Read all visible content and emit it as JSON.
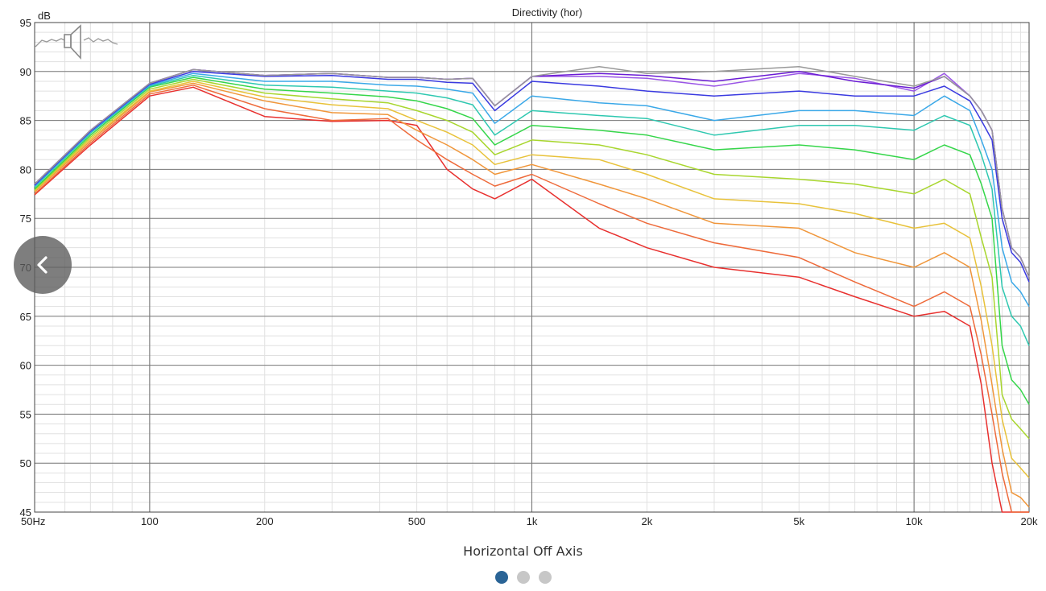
{
  "chart_data": {
    "type": "line",
    "title": "Directivity (hor)",
    "ylabel": "dB",
    "xscale": "log",
    "xlim": [
      50,
      20000
    ],
    "ylim": [
      45,
      95
    ],
    "xticks": [
      {
        "v": 50,
        "label": "50Hz"
      },
      {
        "v": 100,
        "label": "100"
      },
      {
        "v": 200,
        "label": "200"
      },
      {
        "v": 500,
        "label": "500"
      },
      {
        "v": 1000,
        "label": "1k"
      },
      {
        "v": 2000,
        "label": "2k"
      },
      {
        "v": 5000,
        "label": "5k"
      },
      {
        "v": 10000,
        "label": "10k"
      },
      {
        "v": 20000,
        "label": "20k"
      }
    ],
    "yticks": [
      {
        "v": 45,
        "label": "45"
      },
      {
        "v": 50,
        "label": "50"
      },
      {
        "v": 55,
        "label": "55"
      },
      {
        "v": 60,
        "label": "60"
      },
      {
        "v": 65,
        "label": "65"
      },
      {
        "v": 70,
        "label": "70"
      },
      {
        "v": 75,
        "label": "75"
      },
      {
        "v": 80,
        "label": "80"
      },
      {
        "v": 85,
        "label": "85"
      },
      {
        "v": 90,
        "label": "90"
      },
      {
        "v": 95,
        "label": "95"
      }
    ],
    "grid": true,
    "x": [
      50,
      70,
      100,
      130,
      200,
      300,
      420,
      500,
      600,
      700,
      800,
      1000,
      1500,
      2000,
      3000,
      5000,
      7000,
      10000,
      12000,
      14000,
      15000,
      16000,
      17000,
      18000,
      19000,
      20000
    ],
    "series": [
      {
        "color": "#999999",
        "values": [
          78.5,
          84.0,
          88.8,
          90.2,
          89.6,
          89.8,
          89.4,
          89.4,
          89.2,
          89.3,
          86.5,
          89.5,
          90.5,
          89.8,
          90.0,
          90.5,
          89.5,
          88.5,
          89.5,
          87.5,
          86.0,
          84.0,
          76.0,
          72.0,
          71.0,
          69.0
        ]
      },
      {
        "color": "#6a1bd4",
        "values": [
          78.5,
          84.0,
          88.8,
          90.2,
          89.6,
          89.8,
          89.4,
          89.4,
          89.2,
          89.3,
          86.5,
          89.5,
          89.8,
          89.6,
          89.0,
          90.0,
          89.0,
          88.3,
          89.5,
          87.5,
          86.0,
          84.0,
          76.0,
          72.0,
          71.0,
          69.0
        ]
      },
      {
        "color": "#9a55e6",
        "values": [
          78.5,
          84.0,
          88.8,
          90.2,
          89.6,
          89.8,
          89.4,
          89.4,
          89.2,
          89.3,
          86.5,
          89.5,
          89.5,
          89.3,
          88.5,
          89.8,
          89.3,
          88.0,
          89.8,
          87.5,
          86.0,
          84.0,
          76.0,
          72.0,
          71.0,
          69.0
        ]
      },
      {
        "color": "#3a3ae0",
        "values": [
          78.4,
          83.9,
          88.7,
          90.0,
          89.5,
          89.6,
          89.2,
          89.2,
          88.9,
          88.8,
          86.0,
          89.0,
          88.5,
          88.0,
          87.5,
          88.0,
          87.5,
          87.5,
          88.5,
          87.0,
          85.0,
          83.0,
          75.0,
          71.5,
          70.5,
          68.5
        ]
      },
      {
        "color": "#3aa8e8",
        "values": [
          78.3,
          83.8,
          88.6,
          89.8,
          89.0,
          89.0,
          88.6,
          88.5,
          88.2,
          87.8,
          84.7,
          87.5,
          86.8,
          86.5,
          85.0,
          86.0,
          86.0,
          85.5,
          87.5,
          86.0,
          83.0,
          80.0,
          72.0,
          68.5,
          67.5,
          66.0
        ]
      },
      {
        "color": "#2ec8b0",
        "values": [
          78.2,
          83.7,
          88.5,
          89.6,
          88.6,
          88.4,
          88.0,
          87.8,
          87.3,
          86.6,
          83.5,
          86.0,
          85.5,
          85.2,
          83.5,
          84.5,
          84.5,
          84.0,
          85.5,
          84.5,
          81.5,
          78.0,
          68.0,
          65.0,
          64.0,
          62.0
        ]
      },
      {
        "color": "#35d64a",
        "values": [
          78.0,
          83.5,
          88.4,
          89.4,
          88.2,
          87.8,
          87.4,
          87.0,
          86.2,
          85.2,
          82.5,
          84.5,
          84.0,
          83.5,
          82.0,
          82.5,
          82.0,
          81.0,
          82.5,
          81.5,
          78.5,
          75.0,
          62.0,
          58.5,
          57.5,
          56.0
        ]
      },
      {
        "color": "#a8d62e",
        "values": [
          77.9,
          83.3,
          88.2,
          89.2,
          87.8,
          87.2,
          86.8,
          86.0,
          85.0,
          83.8,
          81.5,
          83.0,
          82.5,
          81.5,
          79.5,
          79.0,
          78.5,
          77.5,
          79.0,
          77.5,
          73.0,
          69.0,
          57.0,
          54.5,
          53.5,
          52.5
        ]
      },
      {
        "color": "#e8c23a",
        "values": [
          77.8,
          83.1,
          88.0,
          89.0,
          87.4,
          86.6,
          86.2,
          85.0,
          83.8,
          82.5,
          80.5,
          81.5,
          81.0,
          79.5,
          77.0,
          76.5,
          75.5,
          74.0,
          74.5,
          73.0,
          68.0,
          62.0,
          54.5,
          50.5,
          49.5,
          48.5
        ]
      },
      {
        "color": "#f0963a",
        "values": [
          77.7,
          82.9,
          87.9,
          88.8,
          87.0,
          85.8,
          85.6,
          84.0,
          82.5,
          81.0,
          79.5,
          80.5,
          78.5,
          77.0,
          74.5,
          74.0,
          71.5,
          70.0,
          71.5,
          70.0,
          64.5,
          58.0,
          51.5,
          47.0,
          46.5,
          45.5
        ]
      },
      {
        "color": "#ee6a3a",
        "values": [
          77.5,
          82.7,
          87.7,
          88.6,
          86.2,
          85.0,
          85.2,
          83.0,
          81.0,
          79.5,
          78.3,
          79.5,
          76.5,
          74.5,
          72.5,
          71.0,
          68.5,
          66.0,
          67.5,
          66.0,
          61.0,
          55.0,
          49.0,
          45.0,
          45.0,
          45.0
        ]
      },
      {
        "color": "#e8302e",
        "values": [
          77.4,
          82.5,
          87.5,
          88.4,
          85.4,
          84.9,
          85.0,
          84.5,
          80.0,
          78.0,
          77.0,
          79.0,
          74.0,
          72.0,
          70.0,
          69.0,
          67.0,
          65.0,
          65.5,
          64.0,
          58.0,
          50.0,
          45.0,
          45.0,
          45.0,
          45.0
        ]
      }
    ]
  },
  "caption": "Horizontal Off Axis",
  "nav": {
    "prev_icon": "chevron-left-icon",
    "speaker_icon": "speaker-icon",
    "page_count": 3,
    "active_page": 1
  }
}
